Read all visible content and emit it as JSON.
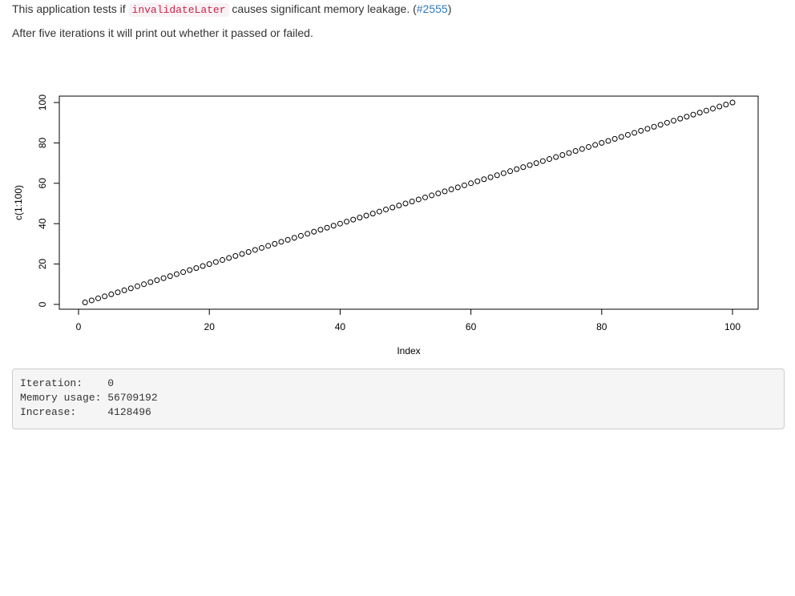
{
  "intro": {
    "prefix": "This application tests if ",
    "code": "invalidateLater",
    "middle": " causes significant memory leakage. (",
    "link": "#2555",
    "suffix": ")"
  },
  "description": "After five iterations it will print out whether it passed or failed.",
  "chart_data": {
    "type": "scatter",
    "title": "",
    "xlabel": "Index",
    "ylabel": "c(1:100)",
    "xlim": [
      0,
      100
    ],
    "ylim": [
      0,
      100
    ],
    "x_ticks": [
      0,
      20,
      40,
      60,
      80,
      100
    ],
    "y_ticks": [
      0,
      20,
      40,
      60,
      80,
      100
    ],
    "x": [
      1,
      2,
      3,
      4,
      5,
      6,
      7,
      8,
      9,
      10,
      11,
      12,
      13,
      14,
      15,
      16,
      17,
      18,
      19,
      20,
      21,
      22,
      23,
      24,
      25,
      26,
      27,
      28,
      29,
      30,
      31,
      32,
      33,
      34,
      35,
      36,
      37,
      38,
      39,
      40,
      41,
      42,
      43,
      44,
      45,
      46,
      47,
      48,
      49,
      50,
      51,
      52,
      53,
      54,
      55,
      56,
      57,
      58,
      59,
      60,
      61,
      62,
      63,
      64,
      65,
      66,
      67,
      68,
      69,
      70,
      71,
      72,
      73,
      74,
      75,
      76,
      77,
      78,
      79,
      80,
      81,
      82,
      83,
      84,
      85,
      86,
      87,
      88,
      89,
      90,
      91,
      92,
      93,
      94,
      95,
      96,
      97,
      98,
      99,
      100
    ],
    "y": [
      1,
      2,
      3,
      4,
      5,
      6,
      7,
      8,
      9,
      10,
      11,
      12,
      13,
      14,
      15,
      16,
      17,
      18,
      19,
      20,
      21,
      22,
      23,
      24,
      25,
      26,
      27,
      28,
      29,
      30,
      31,
      32,
      33,
      34,
      35,
      36,
      37,
      38,
      39,
      40,
      41,
      42,
      43,
      44,
      45,
      46,
      47,
      48,
      49,
      50,
      51,
      52,
      53,
      54,
      55,
      56,
      57,
      58,
      59,
      60,
      61,
      62,
      63,
      64,
      65,
      66,
      67,
      68,
      69,
      70,
      71,
      72,
      73,
      74,
      75,
      76,
      77,
      78,
      79,
      80,
      81,
      82,
      83,
      84,
      85,
      86,
      87,
      88,
      89,
      90,
      91,
      92,
      93,
      94,
      95,
      96,
      97,
      98,
      99,
      100
    ],
    "marker": "open-circle",
    "grid": false
  },
  "output": {
    "lines": [
      "Iteration:    0",
      "Memory usage: 56709192",
      "Increase:     4128496"
    ]
  }
}
